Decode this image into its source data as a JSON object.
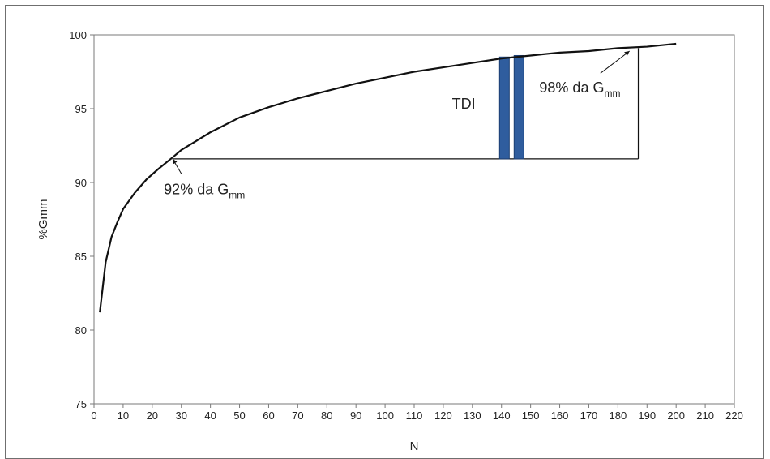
{
  "chart_data": {
    "type": "line",
    "xlabel": "N",
    "ylabel": "%Gmm",
    "xlim": [
      0,
      220
    ],
    "ylim": [
      75,
      100
    ],
    "xticks": [
      0,
      10,
      20,
      30,
      40,
      50,
      60,
      70,
      80,
      90,
      100,
      110,
      120,
      130,
      140,
      150,
      160,
      170,
      180,
      190,
      200,
      210,
      220
    ],
    "yticks": [
      75,
      80,
      85,
      90,
      95,
      100
    ],
    "grid": false,
    "series": [
      {
        "color": "#111111",
        "x": [
          2,
          4,
          6,
          8,
          10,
          14,
          18,
          22,
          27,
          30,
          35,
          40,
          50,
          60,
          70,
          80,
          90,
          100,
          110,
          120,
          130,
          140,
          150,
          160,
          170,
          180,
          190,
          200
        ],
        "y": [
          81.2,
          84.6,
          86.3,
          87.3,
          88.2,
          89.3,
          90.2,
          90.9,
          91.7,
          92.2,
          92.8,
          93.4,
          94.4,
          95.1,
          95.7,
          96.2,
          96.7,
          97.1,
          97.5,
          97.8,
          98.1,
          98.4,
          98.6,
          98.8,
          98.9,
          99.1,
          99.2,
          99.4
        ]
      }
    ],
    "reference_box": {
      "x_start": 27,
      "x_end": 187,
      "y_bottom": 91.6,
      "y_top": 99.1
    },
    "bars": {
      "color": "#2f5d9e",
      "items": [
        {
          "x": 141,
          "y_bottom": 91.6,
          "y_top": 98.5
        },
        {
          "x": 146,
          "y_bottom": 91.6,
          "y_top": 98.6
        }
      ]
    },
    "annotations": [
      {
        "text": "TDI",
        "x": 123,
        "y": 95.0
      },
      {
        "text": "92% da G",
        "subscript": "mm",
        "x": 24,
        "y": 89.2,
        "arrow_from": [
          30,
          90.6
        ],
        "arrow_to": [
          27,
          91.6
        ]
      },
      {
        "text": "98% da G",
        "subscript": "mm",
        "x": 153,
        "y": 96.1,
        "arrow_from": [
          174,
          97.4
        ],
        "arrow_to": [
          184,
          98.9
        ]
      }
    ]
  }
}
